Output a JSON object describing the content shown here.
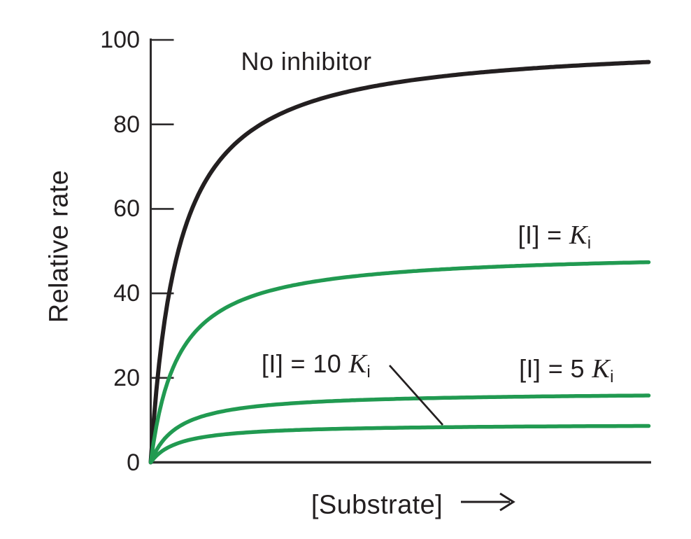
{
  "colors": {
    "ink": "#231f20",
    "axis": "#2d2b2c",
    "green": "#219a51",
    "background": "#ffffff"
  },
  "axes": {
    "y_label": "Relative rate",
    "x_label": "[Substrate]",
    "y_tick_labels": [
      "100",
      "80",
      "60",
      "40",
      "20",
      "0"
    ],
    "x_axis_arrow_icon": "right-arrow"
  },
  "labels": {
    "no_inhibitor": "No inhibitor",
    "i_eq_ki": {
      "prefix": "[I] = ",
      "symbol": "K",
      "subscript": "i"
    },
    "i_eq_10ki": {
      "prefix": "[I] = 10 ",
      "symbol": "K",
      "subscript": "i"
    },
    "i_eq_5ki": {
      "prefix": "[I] = 5 ",
      "symbol": "K",
      "subscript": "i"
    }
  },
  "chart_data": {
    "type": "line",
    "title": "",
    "xlabel": "[Substrate]",
    "ylabel": "Relative rate",
    "ylim": [
      0,
      100
    ],
    "yticks": [
      0,
      20,
      40,
      60,
      80,
      100
    ],
    "x_tick_labels_shown": false,
    "grid": false,
    "legend_position": "inline-annotations",
    "model": "michaelis_menten_saturation",
    "km_fraction_of_x_range": 0.055,
    "series": [
      {
        "name": "No inhibitor",
        "relative_vmax": 100,
        "approx_plateau_shown": 95,
        "color": "#231f20",
        "stroke_width": 6
      },
      {
        "name": "[I] = Ki",
        "relative_vmax": 50,
        "approx_plateau_shown": 48,
        "color": "#219a51",
        "stroke_width": 5.5
      },
      {
        "name": "[I] = 5 Ki",
        "relative_vmax": 16.7,
        "approx_plateau_shown": 16,
        "color": "#219a51",
        "stroke_width": 5.5
      },
      {
        "name": "[I] = 10 Ki",
        "relative_vmax": 9.1,
        "approx_plateau_shown": 9,
        "color": "#219a51",
        "stroke_width": 5.5
      }
    ],
    "annotations": [
      {
        "text": "No inhibitor",
        "refers_to": "No inhibitor",
        "leader_line": false
      },
      {
        "text": "[I] = Ki",
        "refers_to": "[I] = Ki",
        "leader_line": false
      },
      {
        "text": "[I] = 10 Ki",
        "refers_to": "[I] = 10 Ki",
        "leader_line": true
      },
      {
        "text": "[I] = 5 Ki",
        "refers_to": "[I] = 5 Ki",
        "leader_line": false
      }
    ]
  }
}
